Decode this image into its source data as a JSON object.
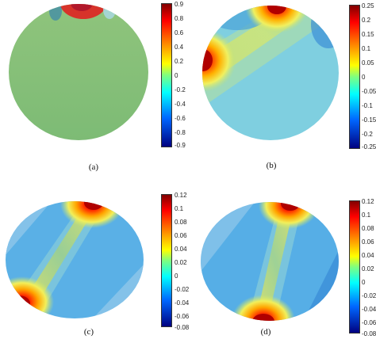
{
  "chart_data": [
    {
      "type": "heatmap",
      "label": "(a)",
      "colorbar": {
        "range": [
          -0.9,
          0.9
        ],
        "ticks": [
          "0.9",
          "0.8",
          "0.6",
          "0.4",
          "0.2",
          "0",
          "-0.2",
          "-0.4",
          "-0.6",
          "-0.8",
          "-0.9"
        ]
      },
      "background_value": 0.02,
      "hotspots": [
        {
          "location": "top",
          "value": 0.9,
          "kind": "arc"
        }
      ]
    },
    {
      "type": "heatmap",
      "label": "(b)",
      "colorbar": {
        "range": [
          -0.25,
          0.25
        ],
        "ticks": [
          "0.25",
          "0.2",
          "0.15",
          "0.1",
          "0.05",
          "0",
          "-0.05",
          "-0.1",
          "-0.15",
          "-0.2",
          "-0.25"
        ]
      },
      "background_value": -0.05,
      "hotspots": [
        {
          "location": "top-right",
          "value": 0.25,
          "kind": "point"
        },
        {
          "location": "left",
          "value": 0.25,
          "kind": "point"
        }
      ]
    },
    {
      "type": "heatmap",
      "label": "(c)",
      "colorbar": {
        "range": [
          -0.08,
          0.12
        ],
        "ticks": [
          "0.12",
          "0.1",
          "0.08",
          "0.06",
          "0.04",
          "0.02",
          "0",
          "-0.02",
          "-0.04",
          "-0.06",
          "-0.08"
        ]
      },
      "background_value": -0.02,
      "hotspots": [
        {
          "location": "top-right",
          "value": 0.12,
          "kind": "point"
        },
        {
          "location": "bottom-left",
          "value": 0.12,
          "kind": "point"
        }
      ]
    },
    {
      "type": "heatmap",
      "label": "(d)",
      "colorbar": {
        "range": [
          -0.08,
          0.12
        ],
        "ticks": [
          "0.12",
          "0.1",
          "0.08",
          "0.06",
          "0.04",
          "0.02",
          "0",
          "-0.02",
          "-0.04",
          "-0.06",
          "-0.08"
        ]
      },
      "background_value": -0.02,
      "hotspots": [
        {
          "location": "top-right",
          "value": 0.12,
          "kind": "point"
        },
        {
          "location": "bottom",
          "value": 0.12,
          "kind": "point"
        }
      ]
    }
  ]
}
